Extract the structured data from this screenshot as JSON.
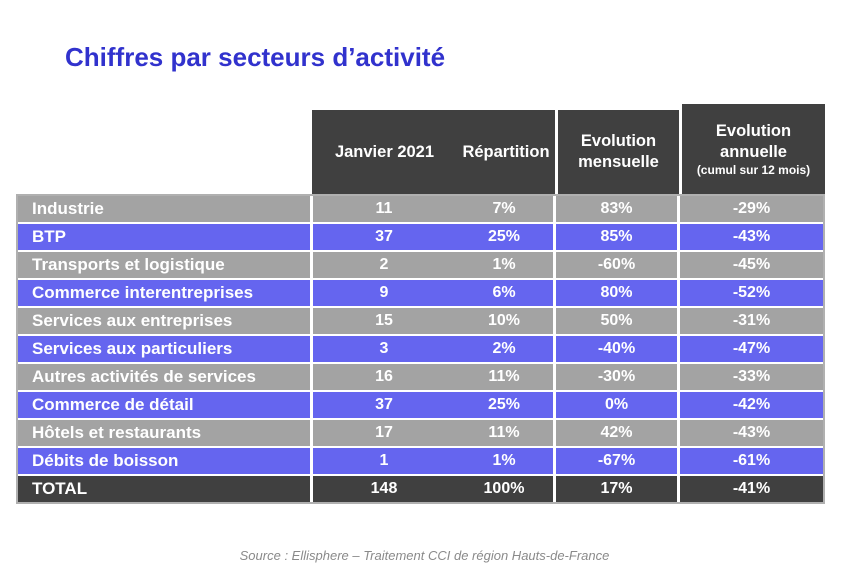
{
  "title": "Chiffres par secteurs d’activité",
  "table": {
    "headers": {
      "janvier": "Janvier 2021",
      "repartition": "Répartition",
      "evolution_mensuelle": "Evolution mensuelle",
      "evolution_annuelle": "Evolution annuelle",
      "evolution_annuelle_note": "(cumul sur 12 mois)"
    },
    "rows": [
      {
        "sector": "Industrie",
        "janvier_2021": "11",
        "repartition": "7%",
        "evolution_mensuelle": "83%",
        "evolution_annuelle": "-29%"
      },
      {
        "sector": "BTP",
        "janvier_2021": "37",
        "repartition": "25%",
        "evolution_mensuelle": "85%",
        "evolution_annuelle": "-43%"
      },
      {
        "sector": "Transports et logistique",
        "janvier_2021": "2",
        "repartition": "1%",
        "evolution_mensuelle": "-60%",
        "evolution_annuelle": "-45%"
      },
      {
        "sector": "Commerce interentreprises",
        "janvier_2021": "9",
        "repartition": "6%",
        "evolution_mensuelle": "80%",
        "evolution_annuelle": "-52%"
      },
      {
        "sector": "Services aux entreprises",
        "janvier_2021": "15",
        "repartition": "10%",
        "evolution_mensuelle": "50%",
        "evolution_annuelle": "-31%"
      },
      {
        "sector": "Services aux particuliers",
        "janvier_2021": "3",
        "repartition": "2%",
        "evolution_mensuelle": "-40%",
        "evolution_annuelle": "-47%"
      },
      {
        "sector": "Autres activités de services",
        "janvier_2021": "16",
        "repartition": "11%",
        "evolution_mensuelle": "-30%",
        "evolution_annuelle": "-33%"
      },
      {
        "sector": "Commerce de détail",
        "janvier_2021": "37",
        "repartition": "25%",
        "evolution_mensuelle": "0%",
        "evolution_annuelle": "-42%"
      },
      {
        "sector": "Hôtels et restaurants",
        "janvier_2021": "17",
        "repartition": "11%",
        "evolution_mensuelle": "42%",
        "evolution_annuelle": "-43%"
      },
      {
        "sector": "Débits de boisson",
        "janvier_2021": "1",
        "repartition": "1%",
        "evolution_mensuelle": "-67%",
        "evolution_annuelle": "-61%"
      }
    ],
    "total": {
      "sector": "TOTAL",
      "janvier_2021": "148",
      "repartition": "100%",
      "evolution_mensuelle": "17%",
      "evolution_annuelle": "-41%"
    }
  },
  "source": "Source : Ellisphere – Traitement CCI de région Hauts-de-France",
  "colors": {
    "title": "#3132cd",
    "row_blue": "#6565ef",
    "row_gray": "#a3a3a3",
    "header_dark": "#404040",
    "text": "#ffffff",
    "source": "#8a8a8a"
  }
}
